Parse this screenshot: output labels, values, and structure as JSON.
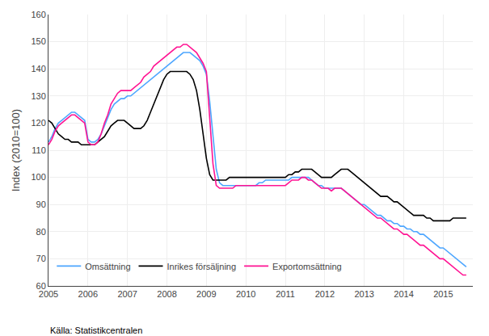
{
  "chart_data": {
    "type": "line",
    "ylabel": "Index (2010=100)",
    "source": "Källa: Statistikcentralen",
    "x": [
      2005.0,
      2005.083333333333,
      2005.166666666667,
      2005.25,
      2005.333333333333,
      2005.416666666667,
      2005.5,
      2005.583333333333,
      2005.666666666667,
      2005.75,
      2005.833333333333,
      2005.916666666667,
      2006.0,
      2006.083333333333,
      2006.166666666667,
      2006.25,
      2006.333333333333,
      2006.416666666667,
      2006.5,
      2006.583333333333,
      2006.666666666667,
      2006.75,
      2006.833333333333,
      2006.916666666667,
      2007.0,
      2007.083333333333,
      2007.166666666667,
      2007.25,
      2007.333333333333,
      2007.416666666667,
      2007.5,
      2007.583333333333,
      2007.666666666667,
      2007.75,
      2007.833333333333,
      2007.916666666667,
      2008.0,
      2008.083333333333,
      2008.166666666667,
      2008.25,
      2008.333333333333,
      2008.416666666667,
      2008.5,
      2008.583333333333,
      2008.666666666667,
      2008.75,
      2008.833333333333,
      2008.916666666667,
      2009.0,
      2009.083333333333,
      2009.166666666667,
      2009.25,
      2009.333333333333,
      2009.416666666667,
      2009.5,
      2009.583333333333,
      2009.666666666667,
      2009.75,
      2009.833333333333,
      2009.916666666667,
      2010.0,
      2010.083333333333,
      2010.166666666667,
      2010.25,
      2010.333333333333,
      2010.416666666667,
      2010.5,
      2010.583333333333,
      2010.666666666667,
      2010.75,
      2010.833333333333,
      2010.916666666667,
      2011.0,
      2011.083333333333,
      2011.166666666667,
      2011.25,
      2011.333333333333,
      2011.416666666667,
      2011.5,
      2011.583333333333,
      2011.666666666667,
      2011.75,
      2011.833333333333,
      2011.916666666667,
      2012.0,
      2012.083333333333,
      2012.166666666667,
      2012.25,
      2012.333333333333,
      2012.416666666667,
      2012.5,
      2012.583333333333,
      2012.666666666667,
      2012.75,
      2012.833333333333,
      2012.916666666667,
      2013.0,
      2013.083333333333,
      2013.166666666667,
      2013.25,
      2013.333333333333,
      2013.416666666667,
      2013.5,
      2013.583333333333,
      2013.666666666667,
      2013.75,
      2013.833333333333,
      2013.916666666667,
      2014.0,
      2014.083333333333,
      2014.166666666667,
      2014.25,
      2014.333333333333,
      2014.416666666667,
      2014.5,
      2014.583333333333,
      2014.666666666667,
      2014.75,
      2014.833333333333,
      2014.916666666667,
      2015.0,
      2015.083333333333,
      2015.166666666667,
      2015.25,
      2015.333333333333,
      2015.416666666667,
      2015.5,
      2015.583333333333
    ],
    "series": [
      {
        "name": "Omsättning",
        "color": "#4da6ff",
        "values": [
          113,
          115,
          118,
          120,
          121,
          122,
          123,
          124,
          124,
          123,
          122,
          121,
          114,
          113,
          113,
          114,
          116,
          119,
          122,
          125,
          127,
          128,
          129,
          129,
          130,
          130,
          131,
          132,
          133,
          134,
          135,
          136,
          137,
          138,
          139,
          140,
          141,
          142,
          143,
          144,
          145,
          146,
          146,
          146,
          145,
          144,
          143,
          141,
          138,
          128,
          115,
          103,
          98,
          97,
          97,
          97,
          97,
          97,
          97,
          97,
          97,
          97,
          97,
          97,
          98,
          98,
          99,
          99,
          99,
          99,
          99,
          99,
          99,
          99,
          100,
          100,
          100,
          100,
          100,
          100,
          99,
          98,
          97,
          97,
          96,
          96,
          96,
          96,
          96,
          96,
          95,
          94,
          93,
          92,
          91,
          90,
          90,
          89,
          88,
          87,
          86,
          86,
          85,
          84,
          84,
          83,
          83,
          82,
          82,
          81,
          81,
          80,
          80,
          79,
          79,
          78,
          77,
          76,
          75,
          74,
          74,
          73,
          72,
          71,
          70,
          69,
          68,
          67
        ]
      },
      {
        "name": "Inrikes försäljning",
        "color": "#000000",
        "values": [
          121,
          120,
          118,
          116,
          115,
          114,
          114,
          113,
          113,
          113,
          112,
          112,
          112,
          112,
          112,
          113,
          114,
          115,
          117,
          119,
          120,
          121,
          121,
          121,
          120,
          119,
          118,
          118,
          118,
          119,
          121,
          124,
          127,
          130,
          133,
          136,
          138,
          139,
          139,
          139,
          139,
          139,
          139,
          138,
          136,
          132,
          125,
          116,
          107,
          101,
          99,
          99,
          99,
          99,
          99,
          100,
          100,
          100,
          100,
          100,
          100,
          100,
          100,
          100,
          100,
          100,
          100,
          100,
          100,
          100,
          100,
          100,
          100,
          101,
          101,
          102,
          102,
          103,
          103,
          103,
          103,
          102,
          101,
          100,
          100,
          100,
          100,
          101,
          102,
          103,
          103,
          103,
          102,
          101,
          100,
          99,
          98,
          97,
          96,
          95,
          94,
          93,
          93,
          93,
          92,
          91,
          91,
          90,
          89,
          88,
          87,
          86,
          86,
          86,
          86,
          85,
          85,
          84,
          84,
          84,
          84,
          84,
          84,
          85,
          85,
          85,
          85,
          85
        ]
      },
      {
        "name": "Exportomsättning",
        "color": "#ff1493",
        "values": [
          112,
          114,
          117,
          119,
          120,
          121,
          122,
          123,
          123,
          122,
          121,
          120,
          113,
          112,
          112,
          113,
          116,
          120,
          123,
          127,
          129,
          131,
          132,
          132,
          132,
          132,
          133,
          134,
          135,
          137,
          138,
          139,
          141,
          142,
          143,
          144,
          145,
          146,
          147,
          148,
          148,
          149,
          149,
          148,
          147,
          146,
          144,
          142,
          139,
          121,
          105,
          97,
          96,
          96,
          96,
          96,
          96,
          97,
          97,
          97,
          97,
          97,
          97,
          97,
          97,
          97,
          97,
          97,
          97,
          97,
          97,
          97,
          97,
          98,
          99,
          99,
          99,
          100,
          100,
          99,
          99,
          98,
          97,
          96,
          96,
          96,
          95,
          96,
          96,
          96,
          95,
          94,
          93,
          92,
          91,
          90,
          89,
          88,
          87,
          86,
          85,
          85,
          84,
          83,
          82,
          81,
          81,
          80,
          79,
          79,
          78,
          77,
          76,
          75,
          75,
          74,
          73,
          72,
          71,
          70,
          70,
          69,
          68,
          67,
          66,
          65,
          64,
          64
        ]
      }
    ],
    "xlim": [
      2005.0,
      2015.75
    ],
    "xticks": [
      2005,
      2006,
      2007,
      2008,
      2009,
      2010,
      2011,
      2012,
      2013,
      2014,
      2015
    ],
    "ylim": [
      60,
      160
    ],
    "yticks": [
      60,
      70,
      80,
      90,
      100,
      110,
      120,
      130,
      140,
      150,
      160
    ],
    "grid": true,
    "legend": "lower left"
  }
}
